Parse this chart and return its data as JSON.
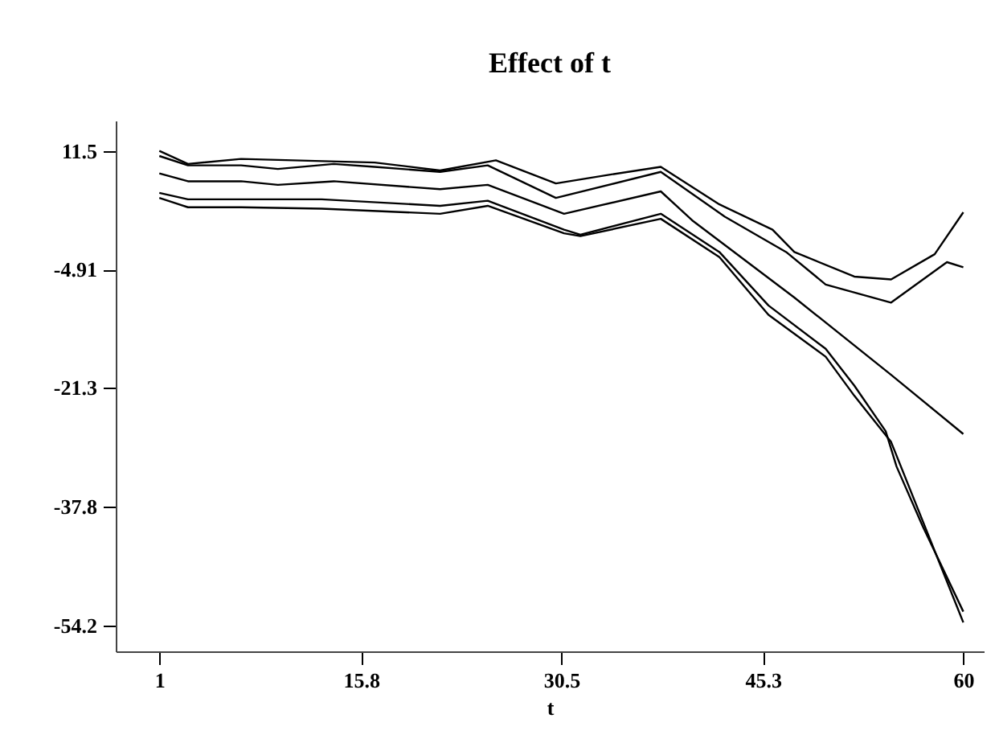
{
  "chart_data": {
    "type": "line",
    "title": "Effect of t",
    "xlabel": "t",
    "xlim": [
      -2.2,
      61.5
    ],
    "ylim": [
      -57.8,
      15.7
    ],
    "xticks": [
      1,
      15.8,
      30.5,
      45.3,
      60
    ],
    "yticks": [
      11.5,
      -4.91,
      -21.3,
      -37.8,
      -54.2
    ],
    "grid": false,
    "marker": "none",
    "line_style": "solid",
    "series": [
      {
        "color": "#000000",
        "x": [
          1,
          3.1,
          7,
          16.8,
          21.6,
          25.7,
          30.1,
          34,
          37.8,
          42.1,
          46,
          47.6,
          52,
          54.7,
          57.9,
          60
        ],
        "values": [
          11.5,
          9.7,
          10.4,
          9.9,
          8.8,
          10.2,
          7.0,
          8.2,
          9.3,
          4.1,
          0.6,
          -2.5,
          -5.9,
          -6.3,
          -2.8,
          3.0
        ]
      },
      {
        "color": "#000000",
        "x": [
          1,
          3.1,
          7,
          9.7,
          13.8,
          16.8,
          21.6,
          25.1,
          30.1,
          37.8,
          42.5,
          47,
          49.9,
          54.7,
          58.8,
          60
        ],
        "values": [
          10.8,
          9.5,
          9.5,
          9.0,
          9.7,
          9.3,
          8.6,
          9.5,
          5.0,
          8.6,
          2.4,
          -2.5,
          -7.0,
          -9.5,
          -3.9,
          -4.6
        ]
      },
      {
        "color": "#000000",
        "x": [
          1,
          3.1,
          7,
          9.7,
          13.8,
          21.6,
          25.1,
          30.7,
          37.8,
          40.1,
          47.6,
          54.7,
          60
        ],
        "values": [
          8.4,
          7.3,
          7.3,
          6.8,
          7.3,
          6.2,
          6.8,
          2.8,
          5.9,
          1.9,
          -8.8,
          -19.5,
          -27.7
        ]
      },
      {
        "color": "#000000",
        "x": [
          1,
          3.1,
          7,
          12.9,
          21.6,
          25.1,
          30.7,
          31.9,
          37.8,
          42.1,
          45.7,
          49.9,
          52,
          54.3,
          55.1,
          57,
          60
        ],
        "values": [
          5.7,
          4.8,
          4.8,
          4.8,
          3.9,
          4.6,
          0.6,
          -0.1,
          2.8,
          -2.5,
          -9.9,
          -15.9,
          -21.0,
          -27.3,
          -32.2,
          -40.4,
          -52.3
        ]
      },
      {
        "color": "#000000",
        "x": [
          1,
          3.1,
          7,
          12.9,
          21.6,
          25.1,
          30.7,
          31.9,
          37.8,
          42.1,
          45.7,
          49.9,
          52,
          54.7,
          60
        ],
        "values": [
          5.0,
          3.7,
          3.7,
          3.5,
          2.8,
          3.9,
          0.1,
          -0.3,
          2.1,
          -3.2,
          -11.2,
          -17.0,
          -22.4,
          -28.8,
          -53.8
        ]
      }
    ]
  }
}
